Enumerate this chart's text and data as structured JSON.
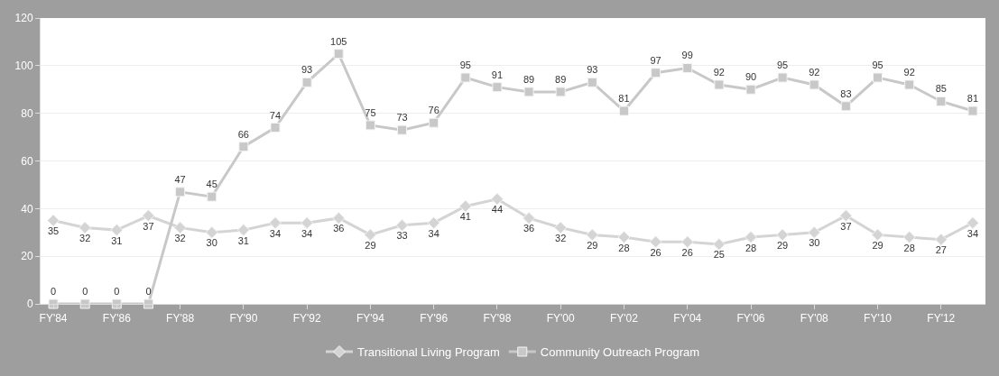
{
  "chart_data": {
    "type": "line",
    "categories": [
      "FY'84",
      null,
      "FY'86",
      null,
      "FY'88",
      null,
      "FY'90",
      null,
      "FY'92",
      null,
      "FY'94",
      null,
      "FY'96",
      null,
      "FY'98",
      null,
      "FY'00",
      null,
      "FY'02",
      null,
      "FY'04",
      null,
      "FY'06",
      null,
      "FY'08",
      null,
      "FY'10",
      null,
      "FY'12",
      null
    ],
    "series": [
      {
        "name": "Transitional Living Program",
        "color": "#d4d4d4",
        "marker": "diamond",
        "values": [
          35,
          32,
          31,
          37,
          32,
          30,
          31,
          34,
          34,
          36,
          29,
          33,
          34,
          41,
          44,
          36,
          32,
          29,
          28,
          26,
          26,
          25,
          28,
          29,
          30,
          37,
          29,
          28,
          27,
          34
        ]
      },
      {
        "name": "Community Outreach Program",
        "color": "#c8c8c8",
        "marker": "square",
        "values": [
          0,
          0,
          0,
          0,
          47,
          45,
          66,
          74,
          93,
          105,
          75,
          73,
          76,
          95,
          91,
          89,
          89,
          93,
          81,
          97,
          99,
          92,
          90,
          95,
          92,
          83,
          95,
          92,
          85,
          81
        ]
      }
    ],
    "ylim": [
      0,
      120
    ],
    "yticks": [
      0,
      20,
      40,
      60,
      80,
      100,
      120
    ],
    "grid": "y",
    "legend": "bottom",
    "data_labels": true
  }
}
